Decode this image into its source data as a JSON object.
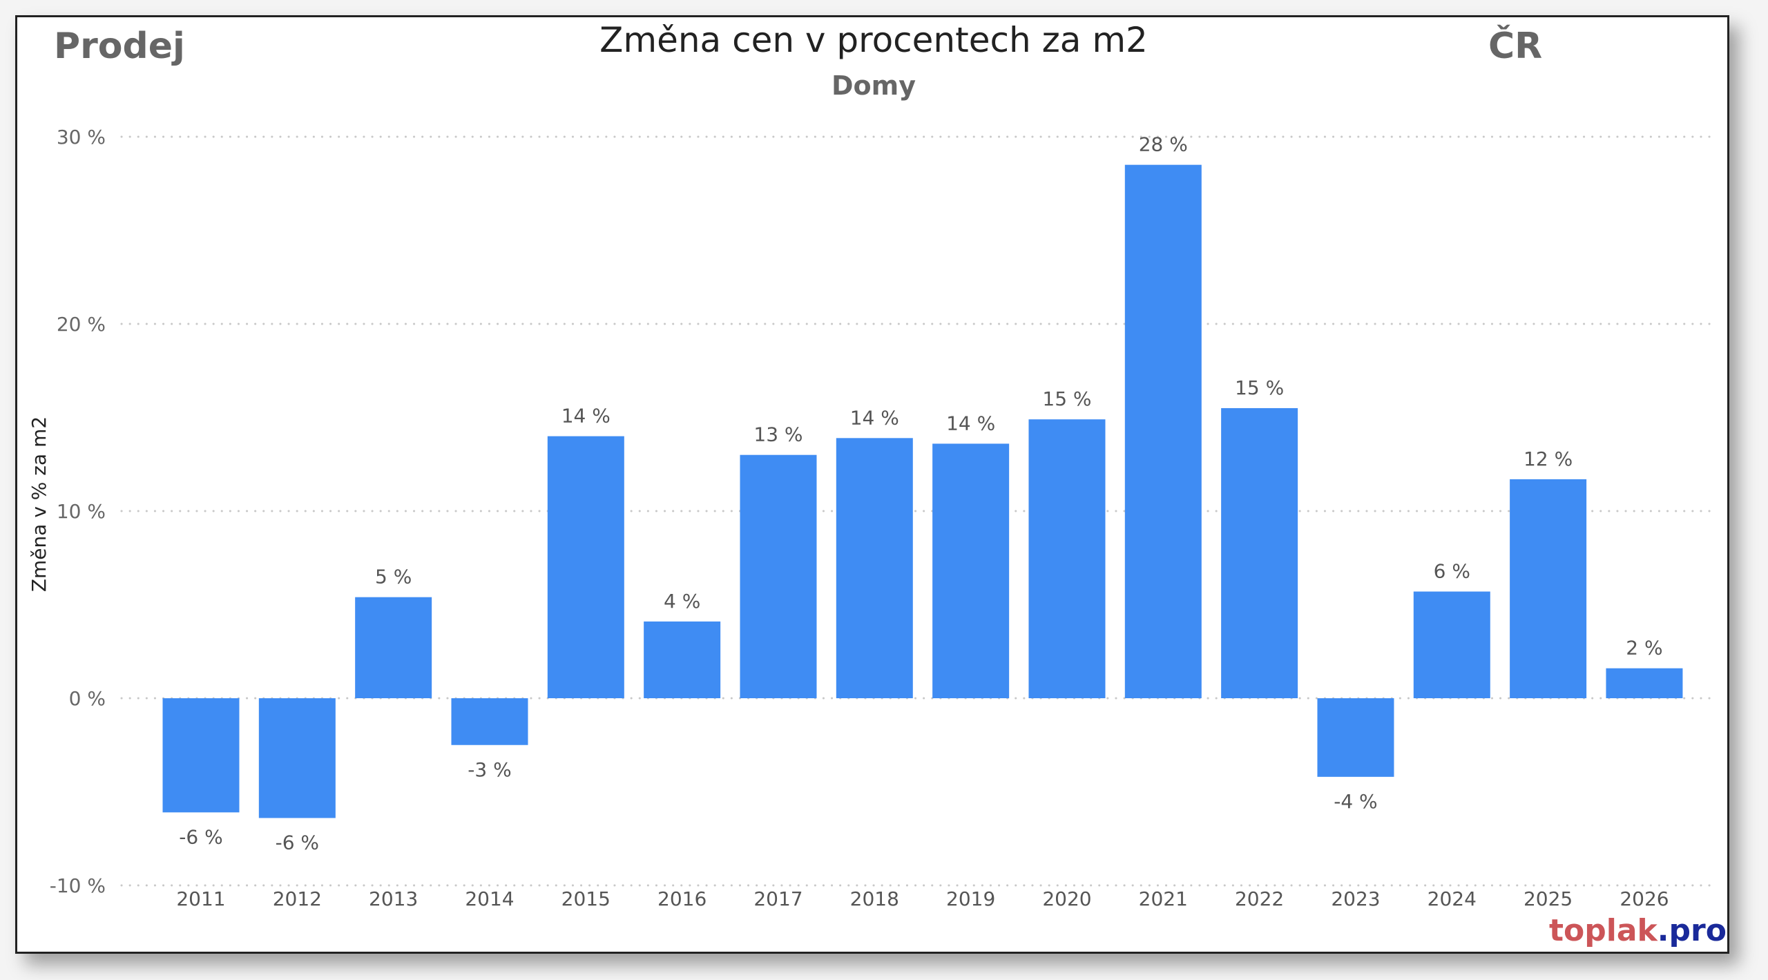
{
  "header": {
    "left": "Prodej",
    "right": "ČR"
  },
  "logo": {
    "part1": "toplak",
    "part2": ".pro"
  },
  "chart_data": {
    "type": "bar",
    "title": "Změna cen v procentech za m2",
    "subtitle": "Domy",
    "xlabel": "",
    "ylabel": "Změna v % za m2",
    "ylim": [
      -10,
      30
    ],
    "yticks": [
      30,
      20,
      10,
      0,
      -10
    ],
    "ytick_labels": [
      "30 %",
      "20 %",
      "10 %",
      "0 %",
      "-10 %"
    ],
    "grid": true,
    "categories": [
      "2011",
      "2012",
      "2013",
      "2014",
      "2015",
      "2016",
      "2017",
      "2018",
      "2019",
      "2020",
      "2021",
      "2022",
      "2023",
      "2024",
      "2025",
      "2026"
    ],
    "values": [
      -6.1,
      -6.4,
      5.4,
      -2.5,
      14.0,
      4.1,
      13.0,
      13.9,
      13.6,
      14.9,
      28.5,
      15.5,
      -4.2,
      5.7,
      11.7,
      1.6
    ],
    "data_labels": [
      "-6 %",
      "-6 %",
      "5 %",
      "-3 %",
      "14 %",
      "4 %",
      "13 %",
      "14 %",
      "14 %",
      "15 %",
      "28 %",
      "15 %",
      "-4 %",
      "6 %",
      "12 %",
      "2 %"
    ],
    "bar_color": "#3f8cf3"
  }
}
